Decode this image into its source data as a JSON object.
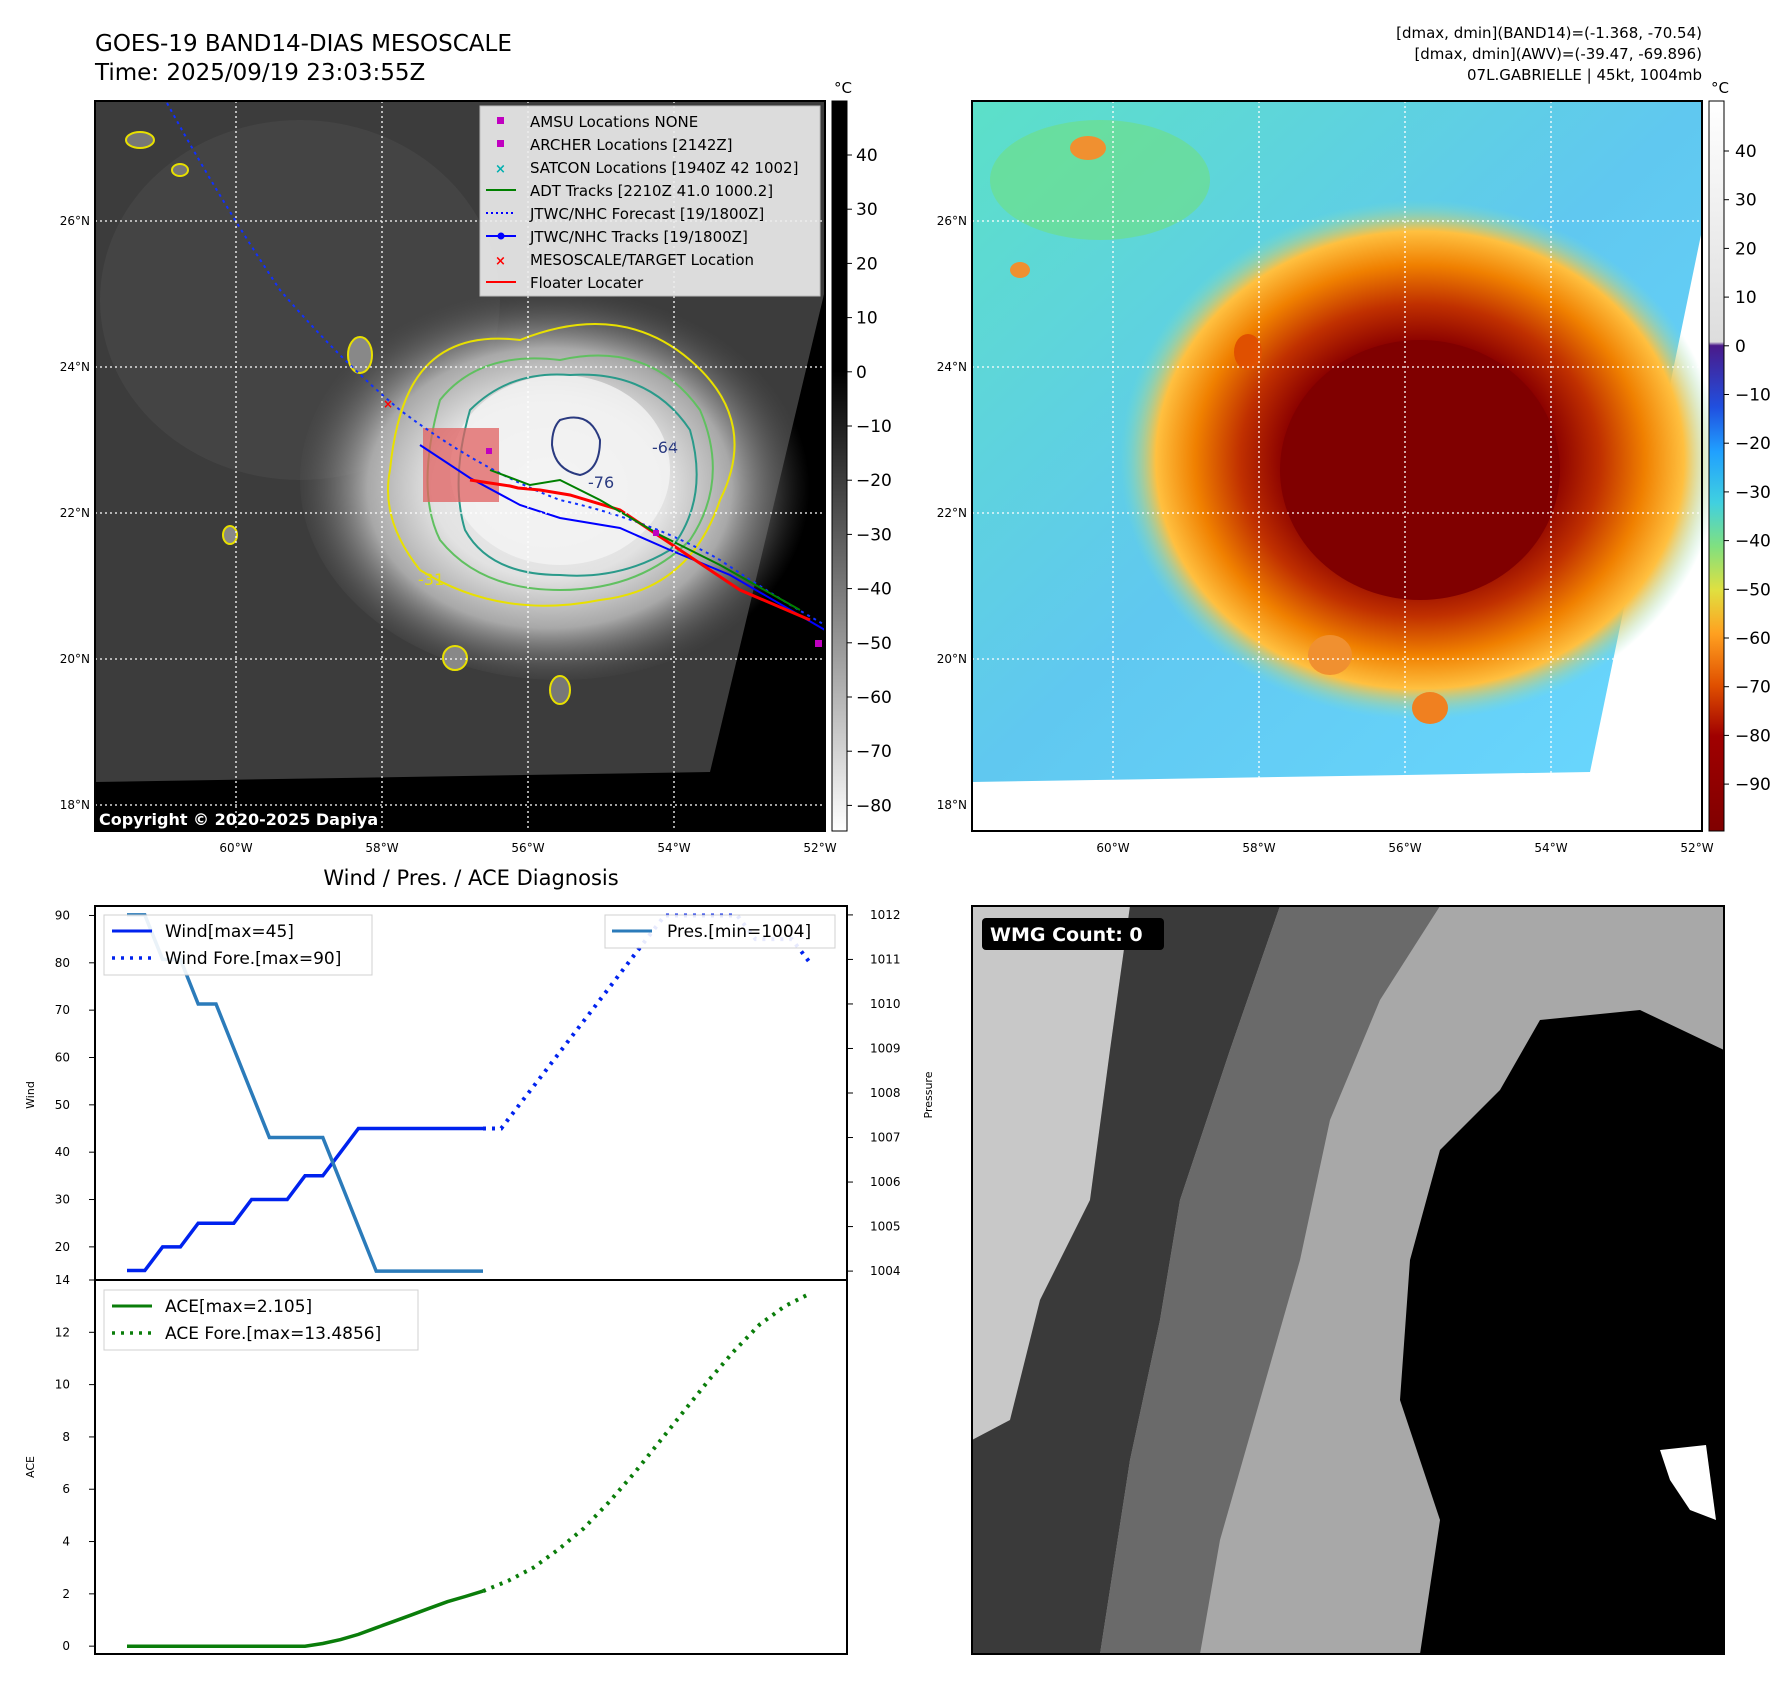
{
  "header": {
    "title": "GOES-19 BAND14-DIAS MESOSCALE",
    "time": "Time: 2025/09/19 23:03:55Z",
    "info1": "[dmax, dmin](BAND14)=(-1.368, -70.54)",
    "info2": "[dmax, dmin](AWV)=(-39.47, -69.896)",
    "info3": "07L.GABRIELLE | 45kt, 1004mb"
  },
  "map": {
    "lat_labels": [
      "26°N",
      "24°N",
      "22°N",
      "20°N",
      "18°N"
    ],
    "lon_labels": [
      "60°W",
      "58°W",
      "56°W",
      "54°W",
      "52°W"
    ],
    "copyright": "Copyright © 2020-2025 Dapiya",
    "contour_labels": [
      "-64",
      "-76",
      "-31"
    ],
    "colorbar_unit": "°C",
    "colorbar_ticks_gray": [
      "40",
      "30",
      "20",
      "10",
      "0",
      "−10",
      "−20",
      "−30",
      "−40",
      "−50",
      "−60",
      "−70",
      "−80"
    ],
    "colorbar_ticks_color": [
      "40",
      "30",
      "20",
      "10",
      "0",
      "−10",
      "−20",
      "−30",
      "−40",
      "−50",
      "−60",
      "−70",
      "−80",
      "−90"
    ],
    "legend": [
      {
        "label": "AMSU Locations NONE",
        "color": "#c000c0"
      },
      {
        "label": "ARCHER Locations [2142Z]",
        "color": "#c000c0"
      },
      {
        "label": "SATCON Locations [1940Z 42 1002]",
        "color": "#00b0b0"
      },
      {
        "label": "ADT Tracks [2210Z 41.0 1000.2]",
        "color": "#008000"
      },
      {
        "label": "JTWC/NHC Forecast [19/1800Z]",
        "color": "#0000ff"
      },
      {
        "label": "JTWC/NHC Tracks [19/1800Z]",
        "color": "#0000ff"
      },
      {
        "label": "MESOSCALE/TARGET Location",
        "color": "#ff0000"
      },
      {
        "label": "Floater Locater",
        "color": "#ff0000"
      }
    ]
  },
  "diag": {
    "title": "Wind / Pres. / ACE Diagnosis",
    "wind_axis_label": "Wind",
    "pres_axis_label": "Pressure",
    "ace_axis_label": "ACE",
    "legend_wind": "Wind[max=45]",
    "legend_wind_fore": "Wind Fore.[max=90]",
    "legend_pres": "Pres.[min=1004]",
    "legend_ace": "ACE[max=2.105]",
    "legend_ace_fore": "ACE Fore.[max=13.4856]",
    "wmg": "WMG Count: 0"
  },
  "chart_data": [
    {
      "type": "line",
      "name": "wind_pressure",
      "x_index": [
        0,
        1,
        2,
        3,
        4,
        5,
        6,
        7,
        8,
        9,
        10,
        11,
        12,
        13,
        14,
        15,
        16,
        17,
        18,
        19,
        20,
        21,
        22,
        23,
        24,
        25,
        26,
        27,
        28,
        29,
        30,
        31,
        32,
        33,
        34,
        35,
        36,
        37,
        38,
        39,
        40
      ],
      "ylabel": "Wind",
      "ylim": [
        13,
        92
      ],
      "y2label": "Pressure",
      "y2lim": [
        1003.8,
        1012.2
      ],
      "series": [
        {
          "name": "Wind[max=45]",
          "values": [
            15,
            15,
            20,
            20,
            25,
            25,
            25,
            30,
            30,
            30,
            35,
            35,
            40,
            45,
            45,
            45,
            45,
            45,
            45,
            45,
            45
          ]
        },
        {
          "name": "Wind Fore.[max=90]",
          "x_start": 20,
          "values": [
            45,
            45,
            50,
            55,
            60,
            65,
            70,
            75,
            80,
            85,
            90,
            90,
            90,
            90,
            90,
            85,
            85,
            85,
            80
          ]
        },
        {
          "name": "Pres.[min=1004]",
          "axis": "right",
          "values": [
            1012,
            1012,
            1011,
            1011,
            1010,
            1010,
            1009,
            1008,
            1007,
            1007,
            1007,
            1007,
            1006,
            1005,
            1004,
            1004,
            1004,
            1004,
            1004,
            1004,
            1004
          ]
        }
      ]
    },
    {
      "type": "line",
      "name": "ace",
      "ylabel": "ACE",
      "ylim": [
        -0.3,
        14
      ],
      "yticks": [
        0,
        2,
        4,
        6,
        8,
        10,
        12,
        14
      ],
      "series": [
        {
          "name": "ACE[max=2.105]",
          "values": [
            0,
            0,
            0,
            0,
            0,
            0,
            0,
            0,
            0,
            0,
            0,
            0.1,
            0.25,
            0.45,
            0.7,
            0.95,
            1.2,
            1.45,
            1.7,
            1.9,
            2.105
          ]
        },
        {
          "name": "ACE Fore.[max=13.4856]",
          "x_start": 20,
          "values": [
            2.105,
            2.5,
            3.0,
            3.7,
            4.5,
            5.5,
            6.6,
            7.8,
            9.0,
            10.2,
            11.3,
            12.3,
            13.0,
            13.4856
          ]
        }
      ]
    }
  ],
  "colors": {
    "wind": "#0022ee",
    "pressure": "#2b7bba",
    "ace": "#0a7d0a"
  }
}
